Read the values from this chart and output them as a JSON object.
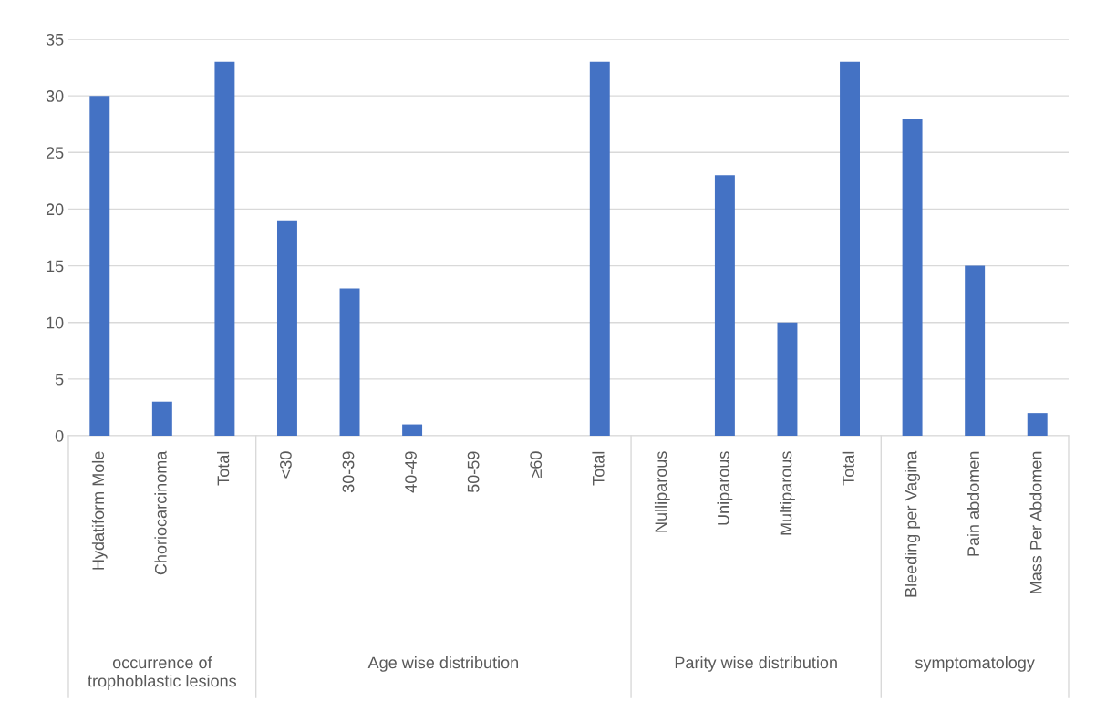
{
  "chart_data": {
    "type": "bar",
    "categories": [
      "Hydatiform Mole",
      "Choriocarcinoma",
      "Total",
      "<30",
      "30-39",
      "40-49",
      "50-59",
      "≥60",
      "Total",
      "Nulliparous",
      "Uniparous",
      "Multiparous",
      "Total",
      "Bleeding per Vagina",
      "Pain abdomen",
      "Mass Per Abdomen"
    ],
    "values": [
      30,
      3,
      33,
      19,
      13,
      1,
      0,
      0,
      33,
      0,
      23,
      10,
      33,
      28,
      15,
      2
    ],
    "color": "#4472c4",
    "ylim": [
      0,
      35
    ],
    "yticks": [
      0,
      5,
      10,
      15,
      20,
      25,
      30,
      35
    ],
    "grid": "y",
    "legend": false,
    "annotations": [
      "occurrence of trophoblastic lesions",
      "Age wise distribution",
      "Parity wise distribution",
      "symptomatology"
    ]
  }
}
